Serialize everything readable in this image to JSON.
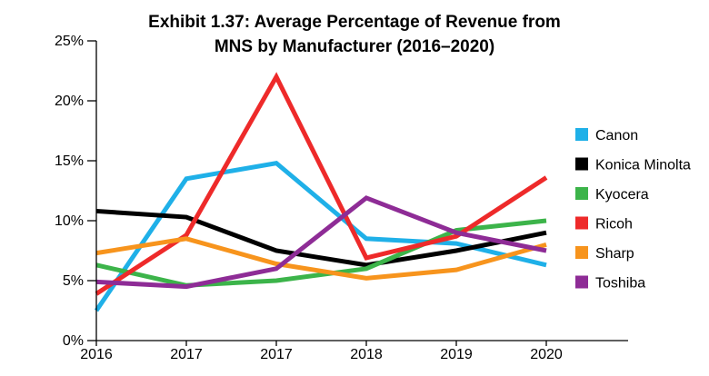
{
  "chart_data": {
    "type": "line",
    "title_lines": [
      "Exhibit 1.37: Average Percentage of Revenue from",
      "MNS by Manufacturer (2016–2020)"
    ],
    "categories": [
      "2016",
      "2017",
      "2017",
      "2018",
      "2019",
      "2020"
    ],
    "y_ticks": [
      "0%",
      "5%",
      "10%",
      "15%",
      "20%",
      "25%"
    ],
    "ylim": [
      0,
      25
    ],
    "xlabel": "",
    "ylabel": "",
    "grid": false,
    "legend_position": "right",
    "series": [
      {
        "name": "Canon",
        "color": "#1fb0e8",
        "values": [
          2.5,
          13.5,
          14.8,
          8.5,
          8.1,
          6.3
        ]
      },
      {
        "name": "Konica Minolta",
        "color": "#000000",
        "values": [
          10.8,
          10.3,
          7.5,
          6.3,
          7.5,
          9.0
        ]
      },
      {
        "name": "Kyocera",
        "color": "#3cb44a",
        "values": [
          6.3,
          4.6,
          5.0,
          6.0,
          9.2,
          10.0
        ]
      },
      {
        "name": "Ricoh",
        "color": "#ee2a2a",
        "values": [
          3.9,
          8.8,
          22.0,
          6.9,
          8.7,
          13.6
        ]
      },
      {
        "name": "Sharp",
        "color": "#f7941d",
        "values": [
          7.3,
          8.5,
          6.4,
          5.2,
          5.9,
          8.0
        ]
      },
      {
        "name": "Toshiba",
        "color": "#8e2c96",
        "values": [
          4.9,
          4.5,
          6.0,
          11.9,
          9.0,
          7.5
        ]
      }
    ]
  }
}
